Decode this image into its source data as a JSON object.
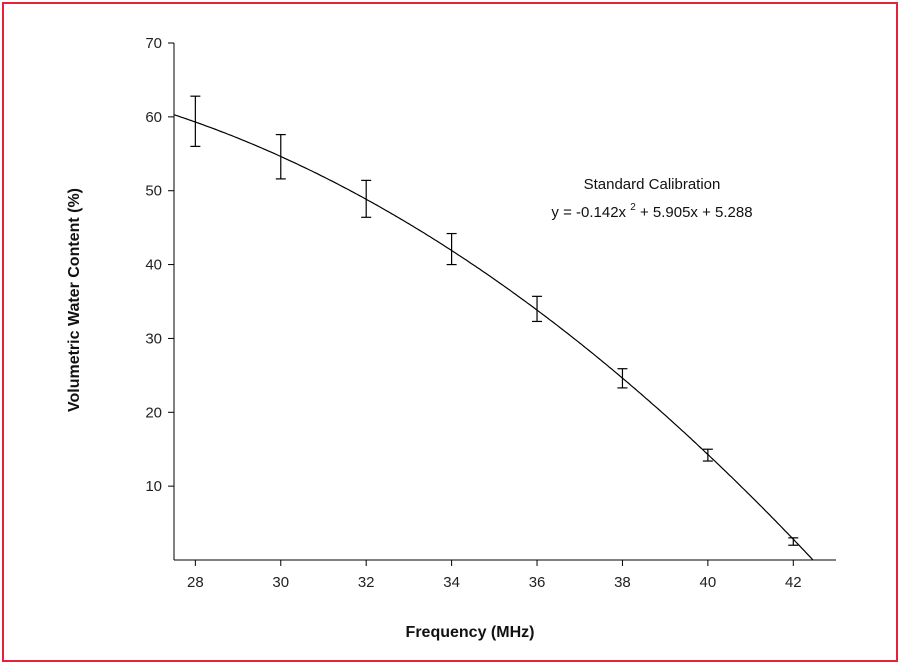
{
  "chart_data": {
    "type": "scatter",
    "xlabel": "Frequency (MHz)",
    "ylabel": "Volumetric Water Content (%)",
    "xlim": [
      27.5,
      43
    ],
    "ylim": [
      0,
      70
    ],
    "x_ticks": [
      28,
      30,
      32,
      34,
      36,
      38,
      40,
      42
    ],
    "y_ticks": [
      10,
      20,
      30,
      40,
      50,
      60,
      70
    ],
    "grid": false,
    "series": [
      {
        "points": [
          {
            "x": 28,
            "y": 59.4,
            "err": 3.4
          },
          {
            "x": 30,
            "y": 54.6,
            "err": 3.0
          },
          {
            "x": 32,
            "y": 48.9,
            "err": 2.5
          },
          {
            "x": 34,
            "y": 42.1,
            "err": 2.1
          },
          {
            "x": 36,
            "y": 34.0,
            "err": 1.7
          },
          {
            "x": 38,
            "y": 24.6,
            "err": 1.3
          },
          {
            "x": 40,
            "y": 14.2,
            "err": 0.8
          },
          {
            "x": 42,
            "y": 2.5,
            "err": 0.5
          }
        ]
      }
    ],
    "fit": {
      "a": -0.142,
      "b": 5.905,
      "c": 5.288
    },
    "annotation": {
      "line1": "Standard Calibration",
      "line2_prefix": "y = -0.142x",
      "line2_exp": "2",
      "line2_suffix": " + 5.905x + 5.288"
    },
    "colors": {
      "frame": "#e8203a",
      "ink": "#000000"
    }
  }
}
